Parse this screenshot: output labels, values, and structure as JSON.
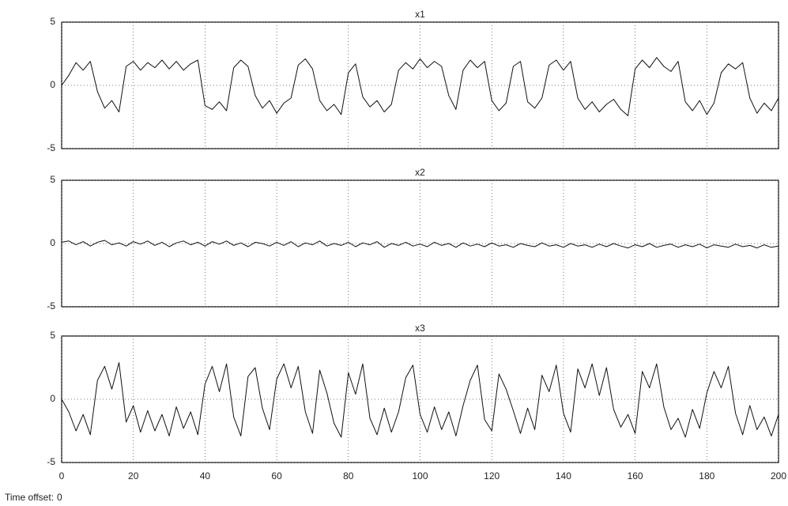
{
  "chart_data": [
    {
      "type": "line",
      "title": "x1",
      "color": "#111111",
      "grid": true,
      "xlim": [
        0,
        200
      ],
      "xticks": [
        0,
        20,
        40,
        60,
        80,
        100,
        120,
        140,
        160,
        180,
        200
      ],
      "ylim": [
        -5,
        5
      ],
      "yticks": [
        -5,
        0,
        5
      ],
      "x": [
        0,
        2,
        4,
        6,
        8,
        10,
        12,
        14,
        16,
        18,
        20,
        22,
        24,
        26,
        28,
        30,
        32,
        34,
        36,
        38,
        40,
        42,
        44,
        46,
        48,
        50,
        52,
        54,
        56,
        58,
        60,
        62,
        64,
        66,
        68,
        70,
        72,
        74,
        76,
        78,
        80,
        82,
        84,
        86,
        88,
        90,
        92,
        94,
        96,
        98,
        100,
        102,
        104,
        106,
        108,
        110,
        112,
        114,
        116,
        118,
        120,
        122,
        124,
        126,
        128,
        130,
        132,
        134,
        136,
        138,
        140,
        142,
        144,
        146,
        148,
        150,
        152,
        154,
        156,
        158,
        160,
        162,
        164,
        166,
        168,
        170,
        172,
        174,
        176,
        178,
        180,
        182,
        184,
        186,
        188,
        190,
        192,
        194,
        196,
        198,
        200
      ],
      "values": [
        0,
        0.8,
        1.8,
        1.2,
        1.9,
        -0.5,
        -1.8,
        -1.2,
        -2.1,
        1.5,
        1.9,
        1.2,
        1.8,
        1.4,
        2.0,
        1.3,
        1.9,
        1.2,
        1.7,
        2.0,
        -1.6,
        -1.9,
        -1.3,
        -2.0,
        1.4,
        2.0,
        1.5,
        -0.8,
        -1.8,
        -1.2,
        -2.2,
        -1.4,
        -1.0,
        1.6,
        2.1,
        1.3,
        -1.2,
        -2.0,
        -1.5,
        -2.3,
        1.0,
        1.7,
        -0.9,
        -1.7,
        -1.2,
        -2.1,
        -1.5,
        1.2,
        1.8,
        1.3,
        2.1,
        1.4,
        1.9,
        1.5,
        -0.8,
        -1.9,
        1.2,
        2.0,
        1.4,
        1.9,
        -1.2,
        -2.0,
        -1.4,
        1.5,
        1.9,
        -1.3,
        -1.8,
        -1.0,
        1.6,
        2.0,
        1.2,
        1.9,
        -1.0,
        -1.9,
        -1.3,
        -2.1,
        -1.5,
        -1.1,
        -1.9,
        -2.4,
        1.3,
        2.0,
        1.4,
        2.2,
        1.5,
        1.1,
        1.9,
        -1.3,
        -2.0,
        -1.2,
        -2.3,
        -1.4,
        1.0,
        1.7,
        1.3,
        1.8,
        -1.0,
        -2.2,
        -1.4,
        -2.0,
        -1.0
      ]
    },
    {
      "type": "line",
      "title": "x2",
      "color": "#111111",
      "grid": true,
      "xlim": [
        0,
        200
      ],
      "xticks": [
        0,
        20,
        40,
        60,
        80,
        100,
        120,
        140,
        160,
        180,
        200
      ],
      "ylim": [
        -5,
        5
      ],
      "yticks": [
        -5,
        0,
        5
      ],
      "x": [
        0,
        2,
        4,
        6,
        8,
        10,
        12,
        14,
        16,
        18,
        20,
        22,
        24,
        26,
        28,
        30,
        32,
        34,
        36,
        38,
        40,
        42,
        44,
        46,
        48,
        50,
        52,
        54,
        56,
        58,
        60,
        62,
        64,
        66,
        68,
        70,
        72,
        74,
        76,
        78,
        80,
        82,
        84,
        86,
        88,
        90,
        92,
        94,
        96,
        98,
        100,
        102,
        104,
        106,
        108,
        110,
        112,
        114,
        116,
        118,
        120,
        122,
        124,
        126,
        128,
        130,
        132,
        134,
        136,
        138,
        140,
        142,
        144,
        146,
        148,
        150,
        152,
        154,
        156,
        158,
        160,
        162,
        164,
        166,
        168,
        170,
        172,
        174,
        176,
        178,
        180,
        182,
        184,
        186,
        188,
        190,
        192,
        194,
        196,
        198,
        200
      ],
      "values": [
        0.1,
        0.2,
        -0.1,
        0.15,
        -0.2,
        0.1,
        0.25,
        -0.1,
        0.05,
        -0.2,
        0.15,
        -0.05,
        0.2,
        -0.15,
        0.1,
        -0.25,
        0.05,
        0.2,
        -0.1,
        0.1,
        -0.2,
        0.15,
        -0.05,
        0.2,
        -0.15,
        0.05,
        -0.25,
        0.1,
        0,
        -0.2,
        0.1,
        -0.15,
        0.15,
        -0.25,
        0.05,
        -0.1,
        0.2,
        -0.2,
        0,
        -0.15,
        0.1,
        -0.25,
        0.05,
        -0.1,
        0.15,
        -0.3,
        0,
        -0.15,
        0.1,
        -0.2,
        -0.05,
        -0.25,
        0.1,
        -0.15,
        0,
        -0.3,
        0.05,
        -0.2,
        -0.05,
        -0.25,
        0.05,
        -0.2,
        -0.1,
        -0.3,
        0,
        -0.15,
        -0.25,
        0.05,
        -0.2,
        -0.1,
        -0.3,
        0,
        -0.2,
        -0.1,
        -0.3,
        -0.05,
        -0.25,
        0,
        -0.2,
        -0.35,
        -0.1,
        -0.25,
        0,
        -0.3,
        -0.15,
        -0.05,
        -0.3,
        -0.1,
        -0.25,
        -0.05,
        -0.35,
        -0.1,
        -0.2,
        -0.3,
        -0.05,
        -0.25,
        -0.15,
        -0.35,
        -0.1,
        -0.3,
        -0.2
      ]
    },
    {
      "type": "line",
      "title": "x3",
      "color": "#111111",
      "grid": true,
      "xlim": [
        0,
        200
      ],
      "xticks": [
        0,
        20,
        40,
        60,
        80,
        100,
        120,
        140,
        160,
        180,
        200
      ],
      "ylim": [
        -5,
        5
      ],
      "yticks": [
        -5,
        0,
        5
      ],
      "x": [
        0,
        2,
        4,
        6,
        8,
        10,
        12,
        14,
        16,
        18,
        20,
        22,
        24,
        26,
        28,
        30,
        32,
        34,
        36,
        38,
        40,
        42,
        44,
        46,
        48,
        50,
        52,
        54,
        56,
        58,
        60,
        62,
        64,
        66,
        68,
        70,
        72,
        74,
        76,
        78,
        80,
        82,
        84,
        86,
        88,
        90,
        92,
        94,
        96,
        98,
        100,
        102,
        104,
        106,
        108,
        110,
        112,
        114,
        116,
        118,
        120,
        122,
        124,
        126,
        128,
        130,
        132,
        134,
        136,
        138,
        140,
        142,
        144,
        146,
        148,
        150,
        152,
        154,
        156,
        158,
        160,
        162,
        164,
        166,
        168,
        170,
        172,
        174,
        176,
        178,
        180,
        182,
        184,
        186,
        188,
        190,
        192,
        194,
        196,
        198,
        200
      ],
      "values": [
        0,
        -1,
        -2.5,
        -1.2,
        -2.8,
        1.5,
        2.6,
        0.8,
        2.9,
        -1.8,
        -0.5,
        -2.6,
        -0.9,
        -2.5,
        -1.2,
        -2.9,
        -0.6,
        -2.3,
        -1.0,
        -2.8,
        1.2,
        2.6,
        0.6,
        2.8,
        -1.4,
        -2.9,
        1.8,
        2.5,
        -0.7,
        -2.4,
        1.6,
        2.8,
        0.9,
        2.6,
        -1.0,
        -2.7,
        2.3,
        0.5,
        -1.9,
        -3.0,
        2.1,
        0.4,
        2.8,
        -1.5,
        -2.8,
        -0.7,
        -2.6,
        -1.0,
        1.7,
        2.7,
        -1.2,
        -2.6,
        -0.6,
        -2.4,
        -1.0,
        -2.9,
        -0.5,
        1.5,
        2.7,
        -1.6,
        -2.5,
        2.0,
        0.8,
        -0.9,
        -2.7,
        -0.7,
        -2.4,
        1.9,
        0.6,
        2.7,
        -1.1,
        -2.6,
        2.4,
        0.9,
        2.8,
        0.3,
        2.5,
        -0.8,
        -2.2,
        -1.2,
        -2.7,
        2.2,
        0.9,
        2.8,
        -0.6,
        -2.4,
        -1.5,
        -3.0,
        -0.8,
        -2.3,
        0.5,
        2.2,
        0.9,
        2.6,
        -1.1,
        -2.8,
        -0.5,
        -2.4,
        -1.4,
        -2.9,
        -1.2
      ]
    }
  ],
  "footer": {
    "label": "Time offset:",
    "value": 0
  }
}
